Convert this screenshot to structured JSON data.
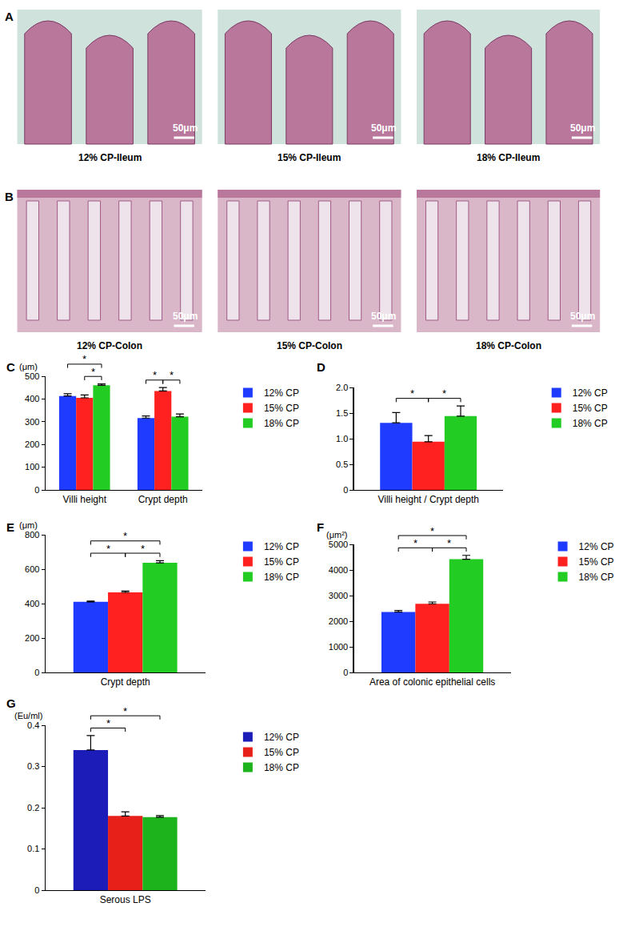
{
  "image_panels": [
    {
      "label": "A",
      "images": [
        {
          "caption": "12% CP-Ileum",
          "scale_bar": "50μm"
        },
        {
          "caption": "15% CP-Ileum",
          "scale_bar": "50μm"
        },
        {
          "caption": "18% CP-Ileum",
          "scale_bar": "50μm"
        }
      ]
    },
    {
      "label": "B",
      "images": [
        {
          "caption": "12% CP-Colon",
          "scale_bar": "50μm"
        },
        {
          "caption": "15% CP-Colon",
          "scale_bar": "50μm"
        },
        {
          "caption": "18% CP-Colon",
          "scale_bar": "50μm"
        }
      ]
    }
  ],
  "chart_data": [
    {
      "label": "C",
      "type": "bar",
      "ylabel": "(μm)",
      "categories": [
        "Villi height",
        "Crypt depth"
      ],
      "series": [
        {
          "name": "12% CP",
          "color": "#1f3bff",
          "values": [
            413,
            316
          ],
          "errors": [
            10,
            9
          ]
        },
        {
          "name": "15% CP",
          "color": "#ff2020",
          "values": [
            405,
            435
          ],
          "errors": [
            13,
            15
          ]
        },
        {
          "name": "18% CP",
          "color": "#22cc22",
          "values": [
            460,
            322
          ],
          "errors": [
            6,
            12
          ]
        }
      ],
      "ylim": [
        0,
        500
      ],
      "yticks": [
        0,
        100,
        200,
        300,
        400,
        500
      ],
      "significance": [
        {
          "category": "Villi height",
          "pair": [
            "15% CP",
            "18% CP"
          ],
          "label": "*"
        },
        {
          "category": "Villi height",
          "pair": [
            "12% CP",
            "18% CP"
          ],
          "label": "*"
        },
        {
          "category": "Crypt depth",
          "pair": [
            "12% CP",
            "15% CP"
          ],
          "label": "*"
        },
        {
          "category": "Crypt depth",
          "pair": [
            "15% CP",
            "18% CP"
          ],
          "label": "*"
        }
      ]
    },
    {
      "label": "D",
      "type": "bar",
      "categories": [
        "Villi height / Crypt depth"
      ],
      "series": [
        {
          "name": "12% CP",
          "color": "#1f3bff",
          "values": [
            1.31
          ],
          "errors": [
            0.2
          ]
        },
        {
          "name": "15% CP",
          "color": "#ff2020",
          "values": [
            0.94
          ],
          "errors": [
            0.12
          ]
        },
        {
          "name": "18% CP",
          "color": "#22cc22",
          "values": [
            1.44
          ],
          "errors": [
            0.2
          ]
        }
      ],
      "ylim": [
        0,
        2
      ],
      "yticks": [
        0,
        0.5,
        {
          "value": 1,
          "label": "1.0"
        },
        1.5,
        {
          "value": 2,
          "label": "2.0"
        }
      ],
      "significance": [
        {
          "category": "Villi height / Crypt depth",
          "pair": [
            "12% CP",
            "15% CP"
          ],
          "label": "*"
        },
        {
          "category": "Villi height / Crypt depth",
          "pair": [
            "15% CP",
            "18% CP"
          ],
          "label": "*"
        }
      ]
    },
    {
      "label": "E",
      "type": "bar",
      "ylabel": "(μm)",
      "categories": [
        "Crypt depth"
      ],
      "series": [
        {
          "name": "12% CP",
          "color": "#1f3bff",
          "values": [
            410
          ],
          "errors": [
            5
          ]
        },
        {
          "name": "15% CP",
          "color": "#ff2020",
          "values": [
            465
          ],
          "errors": [
            8
          ]
        },
        {
          "name": "18% CP",
          "color": "#22cc22",
          "values": [
            637
          ],
          "errors": [
            12
          ]
        }
      ],
      "ylim": [
        0,
        800
      ],
      "yticks": [
        0,
        200,
        400,
        600,
        800
      ],
      "significance": [
        {
          "category": "Crypt depth",
          "pair": [
            "12% CP",
            "15% CP"
          ],
          "label": "*"
        },
        {
          "category": "Crypt depth",
          "pair": [
            "15% CP",
            "18% CP"
          ],
          "label": "*"
        },
        {
          "category": "Crypt depth",
          "pair": [
            "12% CP",
            "18% CP"
          ],
          "label": "*"
        }
      ]
    },
    {
      "label": "F",
      "type": "bar",
      "ylabel": "(μm²)",
      "categories": [
        "Area of colonic epithelial cells"
      ],
      "series": [
        {
          "name": "12% CP",
          "color": "#1f3bff",
          "values": [
            2360
          ],
          "errors": [
            60
          ]
        },
        {
          "name": "15% CP",
          "color": "#ff2020",
          "values": [
            2680
          ],
          "errors": [
            70
          ]
        },
        {
          "name": "18% CP",
          "color": "#22cc22",
          "values": [
            4420
          ],
          "errors": [
            150
          ]
        }
      ],
      "ylim": [
        0,
        5000
      ],
      "yticks": [
        0,
        1000,
        2000,
        3000,
        4000,
        5000
      ],
      "significance": [
        {
          "category": "Area of colonic epithelial cells",
          "pair": [
            "12% CP",
            "15% CP"
          ],
          "label": "*"
        },
        {
          "category": "Area of colonic epithelial cells",
          "pair": [
            "15% CP",
            "18% CP"
          ],
          "label": "*"
        },
        {
          "category": "Area of colonic epithelial cells",
          "pair": [
            "12% CP",
            "18% CP"
          ],
          "label": "*"
        }
      ]
    },
    {
      "label": "G",
      "type": "bar",
      "ylabel": "(Eu/ml)",
      "categories": [
        "Serous LPS"
      ],
      "series": [
        {
          "name": "12% CP",
          "color": "#1c1cb8",
          "values": [
            0.34
          ],
          "errors": [
            0.035
          ]
        },
        {
          "name": "15% CP",
          "color": "#e8201a",
          "values": [
            0.18
          ],
          "errors": [
            0.01
          ]
        },
        {
          "name": "18% CP",
          "color": "#1db31d",
          "values": [
            0.177
          ],
          "errors": [
            0.004
          ]
        }
      ],
      "ylim": [
        0,
        0.4
      ],
      "yticks": [
        0,
        0.1,
        0.2,
        0.3,
        0.4
      ],
      "significance": [
        {
          "category": "Serous LPS",
          "pair": [
            "12% CP",
            "15% CP"
          ],
          "label": "*"
        },
        {
          "category": "Serous LPS",
          "pair": [
            "12% CP",
            "18% CP"
          ],
          "label": "*"
        }
      ]
    }
  ]
}
